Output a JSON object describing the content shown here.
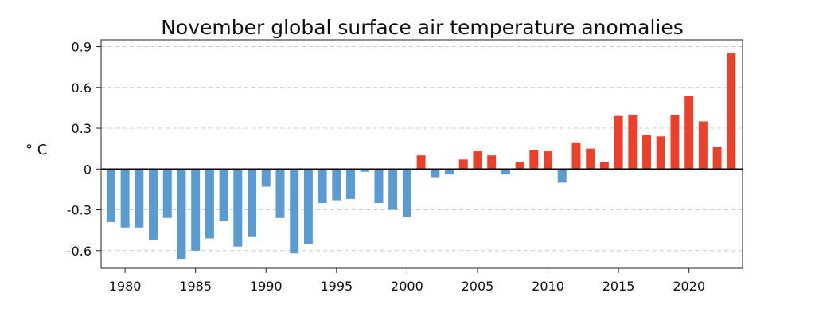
{
  "chart_data": {
    "type": "bar",
    "title": "November global surface air temperature anomalies",
    "xlabel": "",
    "ylabel": "° C",
    "x": [
      1979,
      1980,
      1981,
      1982,
      1983,
      1984,
      1985,
      1986,
      1987,
      1988,
      1989,
      1990,
      1991,
      1992,
      1993,
      1994,
      1995,
      1996,
      1997,
      1998,
      1999,
      2000,
      2001,
      2002,
      2003,
      2004,
      2005,
      2006,
      2007,
      2008,
      2009,
      2010,
      2011,
      2012,
      2013,
      2014,
      2015,
      2016,
      2017,
      2018,
      2019,
      2020,
      2021,
      2022,
      2023
    ],
    "values": [
      -0.39,
      -0.43,
      -0.43,
      -0.52,
      -0.36,
      -0.66,
      -0.6,
      -0.51,
      -0.38,
      -0.57,
      -0.5,
      -0.13,
      -0.36,
      -0.62,
      -0.55,
      -0.25,
      -0.23,
      -0.22,
      -0.02,
      -0.25,
      -0.3,
      -0.35,
      0.1,
      -0.06,
      -0.04,
      0.07,
      0.13,
      0.1,
      -0.04,
      0.05,
      0.14,
      0.13,
      -0.1,
      0.19,
      0.15,
      0.05,
      0.39,
      0.4,
      0.25,
      0.24,
      0.4,
      0.54,
      0.35,
      0.16,
      0.85
    ],
    "ylim": [
      -0.73,
      0.95
    ],
    "xlim": [
      1978.3,
      2023.8
    ],
    "yticks": [
      "0.9",
      "0.6",
      "0.3",
      "0",
      "-0.3",
      "-0.6"
    ],
    "ytick_values": [
      0.9,
      0.6,
      0.3,
      0,
      -0.3,
      -0.6
    ],
    "xticks": [
      "1980",
      "1985",
      "1990",
      "1995",
      "2000",
      "2005",
      "2010",
      "2015",
      "2020"
    ],
    "xtick_values": [
      1980,
      1985,
      1990,
      1995,
      2000,
      2005,
      2010,
      2015,
      2020
    ],
    "grid": "horizontal dashed",
    "colors": {
      "positive": "#e8412c",
      "negative": "#5b9bcf",
      "zero_line": "#000000",
      "grid": "#cccccc"
    }
  }
}
